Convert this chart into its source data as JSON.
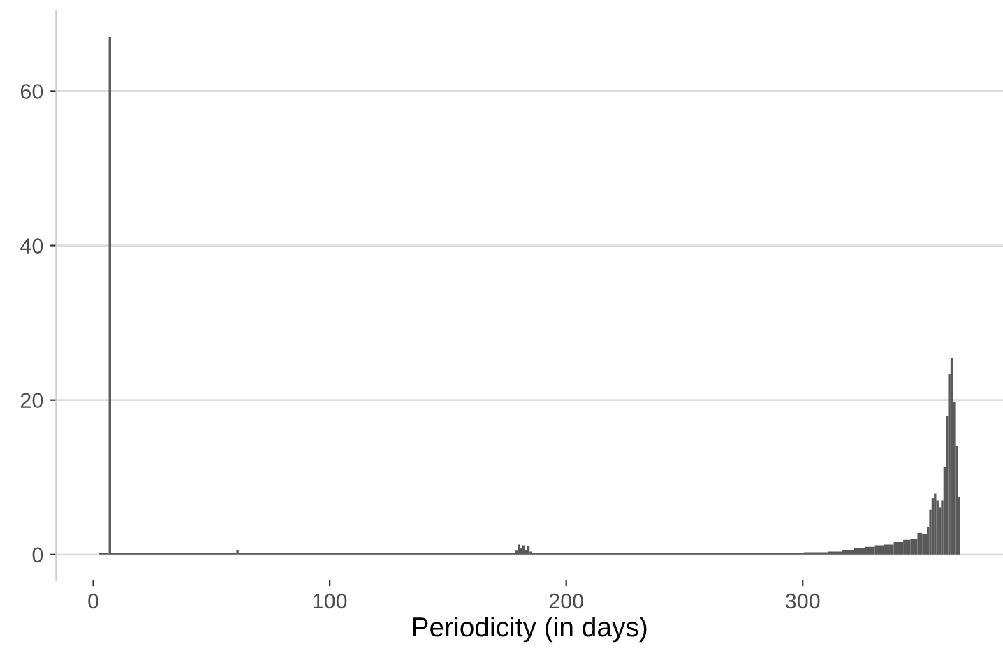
{
  "chart_data": {
    "type": "histogram",
    "xlabel": "Periodicity (in days)",
    "bins": [
      2.5,
      6.5,
      7.5,
      60.5,
      61.5,
      178.5,
      179.5,
      180.5,
      181.5,
      182.5,
      183.5,
      184.5,
      185.5,
      300.5,
      310.5,
      316.5,
      321.5,
      326.5,
      330.5,
      334.5,
      338.5,
      342.5,
      345.5,
      348.5,
      350.5,
      352.5,
      353.5,
      354.5,
      355.5,
      356.5,
      357.5,
      358.5,
      359.5,
      360.5,
      361.5,
      362.5,
      363.5,
      364.5,
      365.5,
      366.5
    ],
    "values": [
      0.2,
      67,
      0.2,
      0.6,
      0.2,
      0.5,
      1.3,
      0.8,
      1.2,
      0.6,
      1.1,
      0.4,
      0.2,
      0.3,
      0.4,
      0.6,
      0.8,
      1.0,
      1.2,
      1.3,
      1.6,
      1.9,
      2.0,
      2.8,
      2.6,
      3.6,
      5.8,
      7.3,
      7.9,
      7.0,
      6.1,
      7.0,
      11.3,
      17.9,
      23.4,
      25.4,
      19.8,
      14,
      7.5
    ],
    "color": "#595959",
    "xlim": [
      -15.7,
      384.7
    ],
    "ylim": [
      -3.35,
      70.35
    ],
    "xticks": [
      0,
      100,
      200,
      300
    ],
    "yticks": [
      0,
      20,
      40,
      60
    ],
    "grid": "y"
  }
}
